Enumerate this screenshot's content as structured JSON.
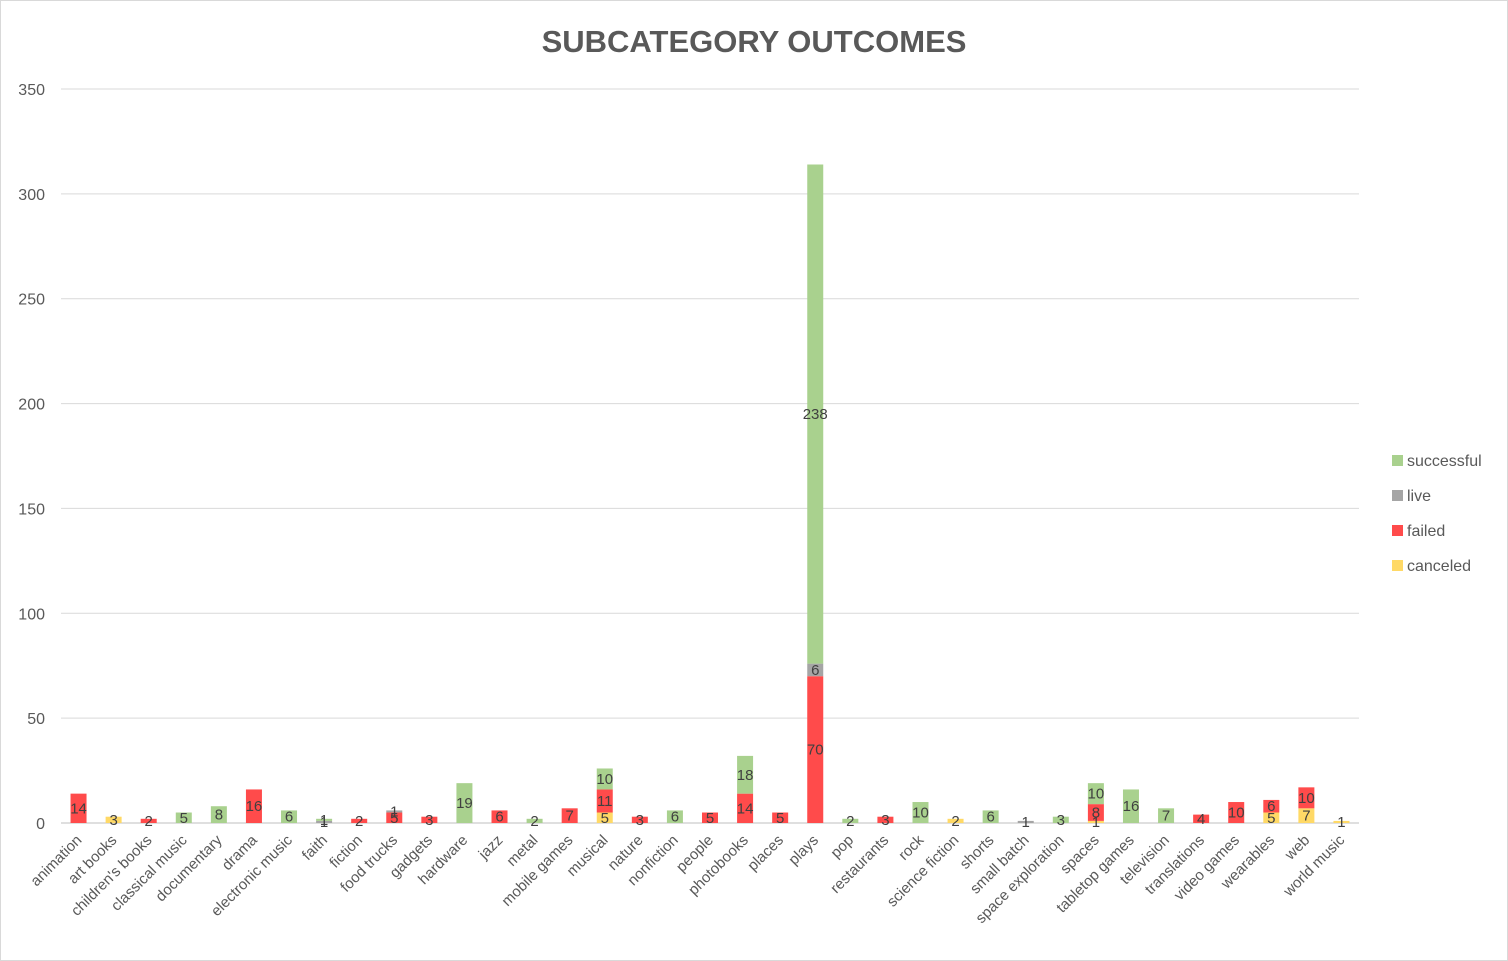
{
  "chart_data": {
    "type": "bar",
    "stacked": true,
    "title": "SUBCATEGORY OUTCOMES",
    "xlabel": "",
    "ylabel": "",
    "ylim": [
      0,
      350
    ],
    "yticks": [
      0,
      50,
      100,
      150,
      200,
      250,
      300,
      350
    ],
    "grid": true,
    "legend_position": "right",
    "categories": [
      "animation",
      "art books",
      "children's books",
      "classical music",
      "documentary",
      "drama",
      "electronic music",
      "faith",
      "fiction",
      "food trucks",
      "gadgets",
      "hardware",
      "jazz",
      "metal",
      "mobile games",
      "musical",
      "nature",
      "nonfiction",
      "people",
      "photobooks",
      "places",
      "plays",
      "pop",
      "restaurants",
      "rock",
      "science fiction",
      "shorts",
      "small batch",
      "space exploration",
      "spaces",
      "tabletop games",
      "television",
      "translations",
      "video games",
      "wearables",
      "web",
      "world music"
    ],
    "series": [
      {
        "name": "canceled",
        "color": "#FFD966",
        "values": [
          0,
          3,
          0,
          0,
          0,
          0,
          0,
          0,
          0,
          0,
          0,
          0,
          0,
          0,
          0,
          5,
          0,
          0,
          0,
          0,
          0,
          0,
          0,
          0,
          0,
          2,
          0,
          0,
          0,
          1,
          0,
          0,
          0,
          0,
          5,
          7,
          1
        ]
      },
      {
        "name": "failed",
        "color": "#FF4B4B",
        "values": [
          14,
          0,
          2,
          0,
          0,
          16,
          0,
          0,
          2,
          5,
          3,
          0,
          6,
          0,
          7,
          11,
          3,
          0,
          5,
          14,
          5,
          70,
          0,
          3,
          0,
          0,
          0,
          0,
          0,
          8,
          0,
          0,
          4,
          10,
          6,
          10,
          0
        ]
      },
      {
        "name": "live",
        "color": "#A5A5A5",
        "values": [
          0,
          0,
          0,
          0,
          0,
          0,
          0,
          1,
          0,
          1,
          0,
          0,
          0,
          0,
          0,
          0,
          0,
          0,
          0,
          0,
          0,
          6,
          0,
          0,
          0,
          0,
          0,
          1,
          0,
          0,
          0,
          0,
          0,
          0,
          0,
          0,
          0
        ]
      },
      {
        "name": "successful",
        "color": "#A9D18E",
        "values": [
          0,
          0,
          0,
          5,
          8,
          0,
          6,
          1,
          0,
          0,
          0,
          19,
          0,
          2,
          0,
          10,
          0,
          6,
          0,
          18,
          0,
          238,
          2,
          0,
          10,
          0,
          6,
          0,
          3,
          10,
          16,
          7,
          0,
          0,
          0,
          0,
          0
        ]
      }
    ]
  }
}
